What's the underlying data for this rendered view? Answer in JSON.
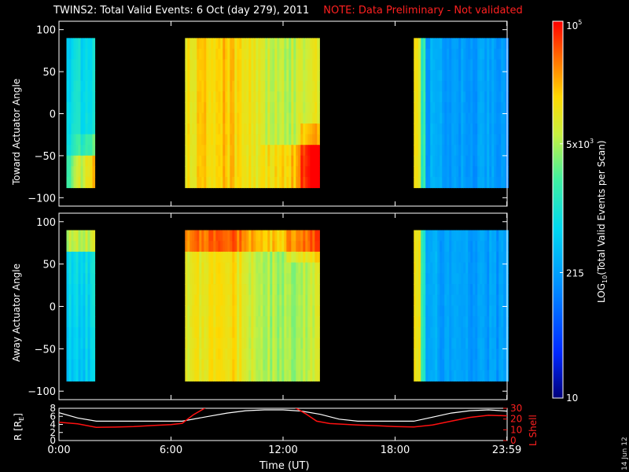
{
  "title": "TWINS2: Total Valid Events:  6 Oct (day 279), 2011",
  "note": "NOTE: Data Preliminary - Not validated",
  "stamp": "14 Jun 12",
  "chart_data": {
    "type": "heatmap",
    "x_axis": {
      "label": "Time (UT)",
      "range_hours": [
        0,
        24
      ],
      "tick_hours": [
        0,
        6,
        12,
        18,
        23.983
      ],
      "tick_labels": [
        "0:00",
        "6:00",
        "12:00",
        "18:00",
        "23:59"
      ]
    },
    "panels": [
      {
        "ylabel": "Toward Actuator Angle",
        "ylim": [
          -110,
          110
        ],
        "yticks": [
          100,
          50,
          0,
          -50,
          -100
        ],
        "data_blocks": [
          {
            "start": 0.4,
            "end": 1.85,
            "base": 3.0,
            "edge": "bottom-orange"
          },
          {
            "start": 6.75,
            "end": 13.9,
            "base": 4.0,
            "edge": "bottom-right-orange"
          },
          {
            "start": 19.0,
            "end": 24.0,
            "base": 2.4,
            "edge": "left-orange"
          }
        ],
        "angle_range": [
          -88,
          90
        ]
      },
      {
        "ylabel": "Away Actuator Angle",
        "ylim": [
          -110,
          110
        ],
        "yticks": [
          100,
          50,
          0,
          -50,
          -100
        ],
        "data_blocks": [
          {
            "start": 0.4,
            "end": 1.85,
            "base": 2.9,
            "edge": "top-yellow"
          },
          {
            "start": 6.75,
            "end": 13.9,
            "base": 3.9,
            "edge": "top-orange"
          },
          {
            "start": 19.0,
            "end": 24.0,
            "base": 2.4,
            "edge": "left-orange"
          }
        ],
        "angle_range": [
          -88,
          90
        ]
      }
    ],
    "orbit_panel": {
      "left_label": "R [R",
      "left_label_sub": "E",
      "left_label_end": "]",
      "left_ylim": [
        0,
        8
      ],
      "left_ticks": [
        0,
        2,
        4,
        6,
        8
      ],
      "right_label": "L Shell",
      "right_ylim": [
        0,
        30
      ],
      "right_ticks": [
        0,
        10,
        20,
        30
      ],
      "r_series": {
        "name": "R",
        "hours": [
          0,
          1,
          2,
          3,
          4,
          5,
          6,
          6.6,
          8,
          9,
          10,
          11,
          12,
          13,
          14,
          15,
          16,
          17,
          18,
          19,
          20,
          21,
          22,
          23,
          24
        ],
        "values": [
          6.9,
          5.6,
          4.8,
          4.8,
          4.8,
          4.8,
          4.8,
          4.8,
          6.0,
          6.8,
          7.4,
          7.6,
          7.6,
          7.3,
          6.5,
          5.3,
          4.8,
          4.8,
          4.8,
          4.8,
          5.8,
          6.8,
          7.4,
          7.6,
          7.3
        ]
      },
      "l_series": {
        "name": "L Shell",
        "hours": [
          0,
          1,
          2,
          3,
          4,
          5,
          6,
          6.6,
          7.2,
          7.9,
          12.6,
          13.2,
          13.8,
          14.5,
          16,
          17,
          18,
          19,
          20,
          21,
          22,
          23,
          24
        ],
        "values": [
          17,
          15.5,
          12.3,
          12.5,
          13.0,
          14.0,
          14.8,
          16,
          24,
          31,
          31,
          25,
          18,
          15.8,
          14.5,
          13.8,
          13.0,
          12.6,
          14.5,
          18,
          21.5,
          23.5,
          23
        ]
      }
    },
    "colorbar": {
      "label": "LOG",
      "label_sub": "10",
      "label_end": "(Total Valid Events per Scan)",
      "log_range": [
        1,
        5
      ],
      "ticks": [
        {
          "value": 1,
          "label": "10",
          "sup": ""
        },
        {
          "value": 2.332,
          "label": "215",
          "sup": ""
        },
        {
          "value": 3.699,
          "label": "5x10",
          "sup": "3"
        },
        {
          "value": 5,
          "label": "10",
          "sup": "5"
        }
      ]
    }
  }
}
